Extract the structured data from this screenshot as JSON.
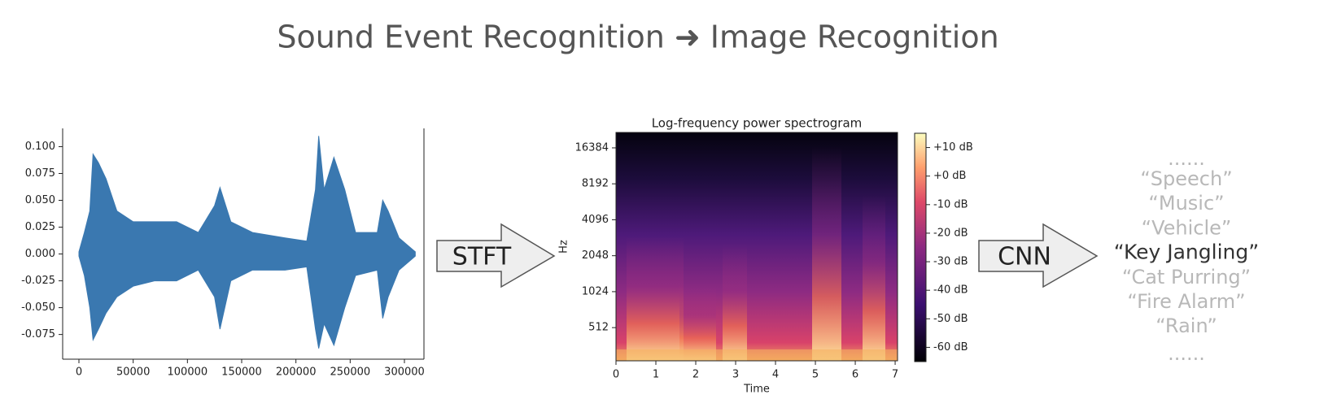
{
  "title": "Sound Event Recognition ➜ Image Recognition",
  "chart_data": [
    {
      "type": "area",
      "x": [
        0,
        5000,
        10000,
        13000,
        18000,
        25000,
        35000,
        50000,
        70000,
        90000,
        110000,
        125000,
        130000,
        140000,
        160000,
        190000,
        210000,
        218000,
        221000,
        226000,
        235000,
        245000,
        255000,
        275000,
        280000,
        285000,
        295000,
        310000
      ],
      "series": [
        {
          "color": "#3a78b0",
          "values": [
            0.002,
            0.02,
            0.04,
            0.093,
            0.085,
            0.07,
            0.04,
            0.03,
            0.03,
            0.03,
            0.02,
            0.045,
            0.062,
            0.03,
            0.02,
            0.015,
            0.012,
            0.06,
            0.11,
            0.06,
            0.09,
            0.06,
            0.02,
            0.02,
            0.05,
            0.04,
            0.015,
            0.002
          ]
        },
        {
          "color": "#3a78b0",
          "values": [
            -0.002,
            -0.02,
            -0.05,
            -0.08,
            -0.07,
            -0.055,
            -0.04,
            -0.03,
            -0.025,
            -0.025,
            -0.015,
            -0.04,
            -0.07,
            -0.025,
            -0.015,
            -0.015,
            -0.012,
            -0.07,
            -0.088,
            -0.065,
            -0.085,
            -0.05,
            -0.02,
            -0.015,
            -0.06,
            -0.04,
            -0.015,
            -0.002
          ]
        }
      ],
      "xlim": [
        -15000,
        318000
      ],
      "ylim": [
        -0.098,
        0.117
      ],
      "xticks": [
        0,
        50000,
        100000,
        150000,
        200000,
        250000,
        300000
      ],
      "yticks": [
        {
          "value": 0.1,
          "label": "0.100"
        },
        0.075,
        {
          "value": 0.05,
          "label": "0.050"
        },
        0.025,
        {
          "value": 0,
          "label": "0.000"
        },
        -0.025,
        {
          "value": -0.05,
          "label": "-0.050"
        },
        -0.075
      ]
    },
    {
      "type": "heatmap",
      "title": "Log-frequency power spectrogram",
      "xlabel": "Time",
      "ylabel": "Hz",
      "xlim": [
        0,
        7.06
      ],
      "ylim": [
        270,
        22050
      ],
      "yscale": "log",
      "xticks": [
        0,
        1,
        2,
        3,
        4,
        5,
        6,
        7
      ],
      "yticks": [
        512,
        1024,
        2048,
        4096,
        8192,
        16384
      ],
      "colorbar": {
        "lim": [
          -65,
          15
        ],
        "ticks": [
          {
            "value": 10,
            "label": "+10 dB"
          },
          {
            "value": 0,
            "label": "+0 dB"
          },
          {
            "value": -10,
            "label": "-10 dB"
          },
          {
            "value": -20,
            "label": "-20 dB"
          },
          {
            "value": -30,
            "label": "-30 dB"
          },
          {
            "value": -40,
            "label": "-40 dB"
          },
          {
            "value": -50,
            "label": "-50 dB"
          },
          {
            "value": -60,
            "label": "-60 dB"
          }
        ]
      }
    }
  ],
  "arrows": [
    "STFT",
    "CNN"
  ],
  "classes": [
    "......",
    "“Speech”",
    "“Music”",
    "“Vehicle”",
    "“Key Jangling”",
    "“Cat Purring”",
    "“Fire Alarm”",
    "“Rain”",
    "......"
  ]
}
